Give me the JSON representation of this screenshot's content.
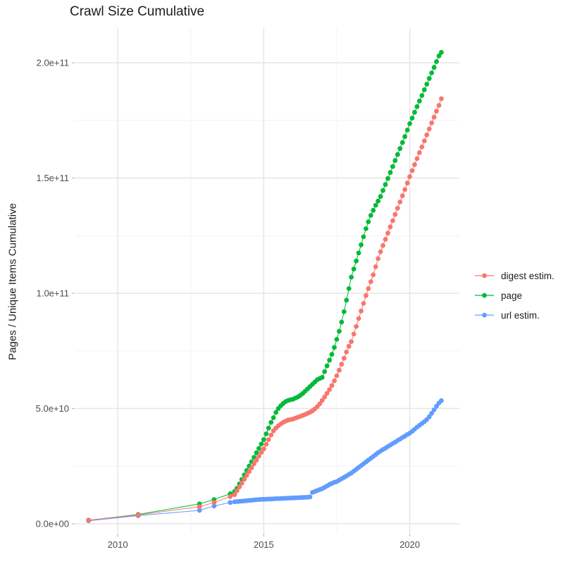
{
  "chart_data": {
    "type": "scatter",
    "title": "Crawl Size Cumulative",
    "xlabel": "",
    "ylabel": "Pages / Unique Items Cumulative",
    "value_unit": "1e9 (values stored in billions)",
    "grid": true,
    "legend_position": "right",
    "x_range": [
      2008.55,
      2021.7
    ],
    "y_range": [
      -4,
      215
    ],
    "x_major_ticks": [
      {
        "value": 2010,
        "label": "2010"
      },
      {
        "value": 2015,
        "label": "2015"
      },
      {
        "value": 2020,
        "label": "2020"
      }
    ],
    "x_minor_ticks": [
      2012.5,
      2017.5
    ],
    "y_major_ticks": [
      {
        "value": 0,
        "label": "0.0e+00"
      },
      {
        "value": 50,
        "label": "5.0e+10"
      },
      {
        "value": 100,
        "label": "1.0e+11"
      },
      {
        "value": 150,
        "label": "1.5e+11"
      },
      {
        "value": 200,
        "label": "2.0e+11"
      }
    ],
    "y_minor_ticks": [
      25,
      75,
      125,
      175
    ],
    "legend_order": [
      "digest estim.",
      "page",
      "url estim."
    ],
    "draw_order": [
      "page",
      "url estim.",
      "digest estim."
    ],
    "series": [
      {
        "name": "digest estim.",
        "color": "#F8766D",
        "early_points": [
          [
            2009.0,
            1.6
          ],
          [
            2010.7,
            3.8
          ],
          [
            2012.8,
            7.4
          ],
          [
            2013.3,
            9.2
          ],
          [
            2013.85,
            11.8
          ]
        ],
        "monthly_start": 2014.0,
        "monthly_step": 0.08333,
        "monthly_values": [
          12.6,
          14.3,
          16.0,
          17.6,
          19.3,
          21.0,
          22.6,
          24.3,
          26.0,
          27.6,
          29.3,
          31.0,
          32.5,
          34.5,
          36.5,
          38.5,
          40.3,
          41.5,
          42.5,
          43.3,
          44.0,
          44.5,
          45.0,
          45.2,
          45.4,
          45.8,
          46.2,
          46.6,
          47.0,
          47.4,
          47.9,
          48.4,
          49.0,
          49.8,
          50.8,
          52.0,
          53.5,
          55.0,
          56.6,
          58.2,
          60.0,
          62.0,
          64.2,
          66.6,
          69.2,
          71.8,
          74.5,
          77.0,
          79.0,
          82.3,
          85.6,
          89.0,
          92.3,
          95.6,
          99.0,
          102.0,
          105.0,
          108.0,
          111.5,
          115.0,
          118.0,
          120.7,
          123.4,
          126.1,
          128.8,
          131.5,
          134.2,
          136.9,
          139.6,
          142.3,
          145.0,
          147.8,
          150.6,
          153.2,
          155.8,
          158.4,
          161.0,
          163.5,
          166.1,
          168.7,
          171.3,
          173.9,
          176.4,
          179.0,
          181.5,
          184.4
        ]
      },
      {
        "name": "page",
        "color": "#00BA38",
        "early_points": [
          [
            2009.0,
            1.5
          ],
          [
            2010.7,
            4.0
          ],
          [
            2012.8,
            8.6
          ],
          [
            2013.3,
            10.5
          ],
          [
            2013.85,
            13.0
          ]
        ],
        "monthly_start": 2014.0,
        "monthly_step": 0.08333,
        "monthly_values": [
          14.0,
          15.4,
          17.3,
          19.2,
          21.2,
          23.1,
          25.0,
          26.9,
          28.8,
          30.8,
          32.7,
          34.6,
          36.5,
          39.0,
          41.5,
          44.0,
          46.0,
          48.3,
          50.0,
          51.2,
          52.2,
          53.0,
          53.5,
          53.8,
          54.0,
          54.5,
          55.0,
          55.7,
          56.5,
          57.5,
          58.5,
          59.5,
          60.5,
          61.5,
          62.5,
          63.0,
          63.5,
          66.0,
          68.5,
          71.0,
          73.5,
          76.5,
          80.0,
          83.5,
          87.5,
          92.0,
          97.0,
          102.0,
          107.0,
          110.5,
          114.0,
          117.5,
          121.0,
          124.5,
          128.0,
          131.0,
          133.8,
          136.0,
          138.2,
          140.0,
          142.0,
          144.6,
          147.2,
          149.8,
          152.4,
          155.0,
          157.6,
          160.2,
          162.8,
          165.4,
          168.0,
          170.8,
          173.6,
          176.0,
          178.5,
          181.0,
          183.4,
          185.8,
          188.3,
          190.7,
          193.2,
          195.6,
          198.0,
          200.5,
          203.0,
          204.5
        ]
      },
      {
        "name": "url estim.",
        "color": "#619CFF",
        "early_points": [
          [
            2009.0,
            1.3
          ],
          [
            2010.7,
            3.5
          ],
          [
            2012.8,
            5.8
          ],
          [
            2013.3,
            7.7
          ],
          [
            2013.85,
            9.2
          ]
        ],
        "monthly_start": 2014.0,
        "monthly_step": 0.08333,
        "monthly_values": [
          9.5,
          9.6,
          9.7,
          9.8,
          9.9,
          10.0,
          10.1,
          10.2,
          10.3,
          10.4,
          10.5,
          10.55,
          10.6,
          10.65,
          10.7,
          10.75,
          10.8,
          10.85,
          10.9,
          10.95,
          11.0,
          11.05,
          11.1,
          11.15,
          11.2,
          11.25,
          11.3,
          11.35,
          11.4,
          11.45,
          11.5,
          11.6,
          13.6,
          14.0,
          14.4,
          14.8,
          15.2,
          15.8,
          16.4,
          17.0,
          17.5,
          18.0,
          18.3,
          18.9,
          19.5,
          20.1,
          20.7,
          21.4,
          22.0,
          22.8,
          23.6,
          24.4,
          25.2,
          26.0,
          26.8,
          27.6,
          28.4,
          29.2,
          30.0,
          30.8,
          31.5,
          32.2,
          32.8,
          33.5,
          34.1,
          34.8,
          35.4,
          36.1,
          36.7,
          37.4,
          38.0,
          38.7,
          39.3,
          40.1,
          41.0,
          41.9,
          42.7,
          43.5,
          44.3,
          45.2,
          46.4,
          47.9,
          49.4,
          51.0,
          52.4,
          53.4
        ]
      }
    ],
    "style": {
      "grid_major_color": "#E4E4E4",
      "grid_minor_color": "#F1F1F1",
      "tick_color": "#B0B0B0",
      "tick_label_color": "#4D4D4D",
      "point_radius": 3.4
    }
  }
}
